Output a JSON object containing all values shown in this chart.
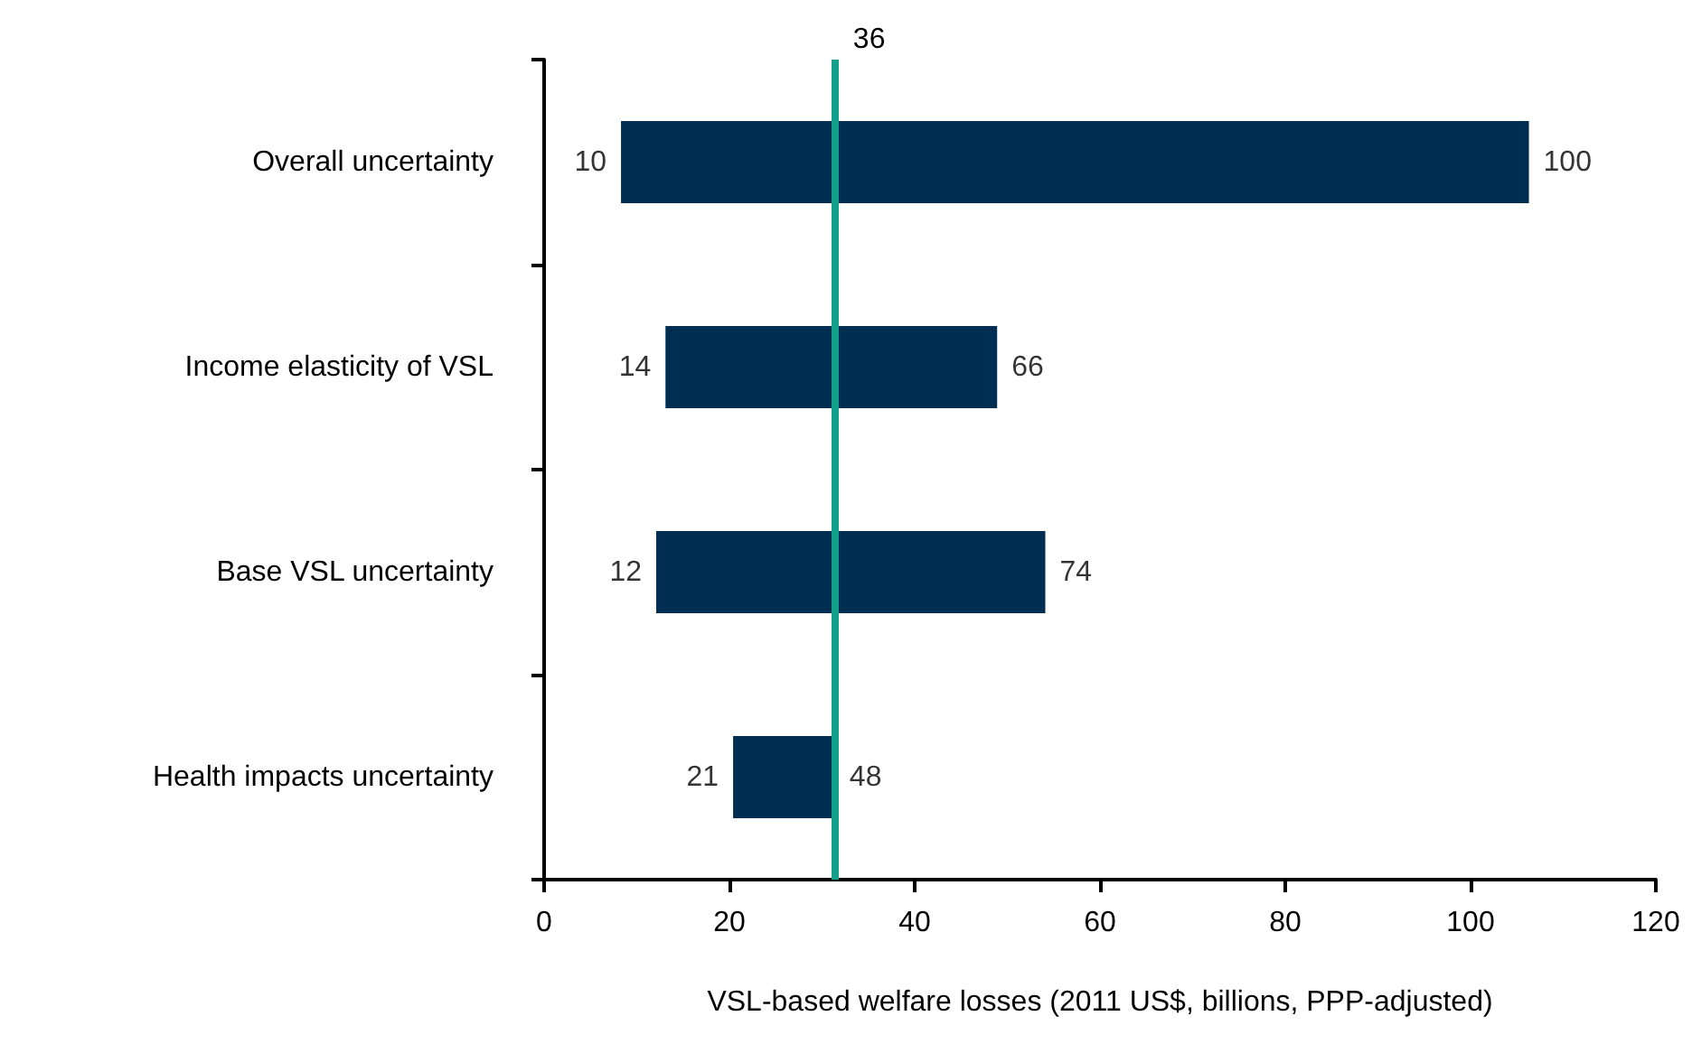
{
  "chart_data": {
    "type": "bar",
    "orientation": "horizontal",
    "xlabel": "VSL-based welfare losses (2011 US$, billions, PPP-adjusted)",
    "categories": [
      "Overall uncertainty",
      "Income elasticity of VSL",
      "Base VSL uncertainty",
      "Health impacts uncertainty"
    ],
    "base": [
      8.3,
      13.1,
      12.1,
      20.4
    ],
    "values": [
      98,
      35.8,
      42,
      11
    ],
    "color": "#002e52",
    "xlim": [
      0,
      120
    ],
    "xticks": [
      0,
      20,
      40,
      60,
      80,
      100,
      120
    ],
    "grid": false,
    "ref_lines": [
      {
        "axis": "x",
        "value": 31.4,
        "color": "#13a08a"
      }
    ],
    "annotations": [
      "36",
      {
        "text": "10",
        "x": 8.3,
        "y": "Overall uncertainty"
      },
      {
        "text": "100",
        "x": 106.3,
        "y": "Overall uncertainty"
      },
      {
        "text": "14",
        "x": 13.1,
        "y": "Income elasticity of VSL"
      },
      {
        "text": "66",
        "x": 48.9,
        "y": "Income elasticity of VSL"
      },
      {
        "text": "12",
        "x": 12.1,
        "y": "Base VSL uncertainty"
      },
      {
        "text": "74",
        "x": 54.1,
        "y": "Base VSL uncertainty"
      },
      {
        "text": "21",
        "x": 20.4,
        "y": "Health impacts uncertainty"
      },
      {
        "text": "48",
        "x": 31.4,
        "y": "Health impacts uncertainty"
      }
    ]
  }
}
